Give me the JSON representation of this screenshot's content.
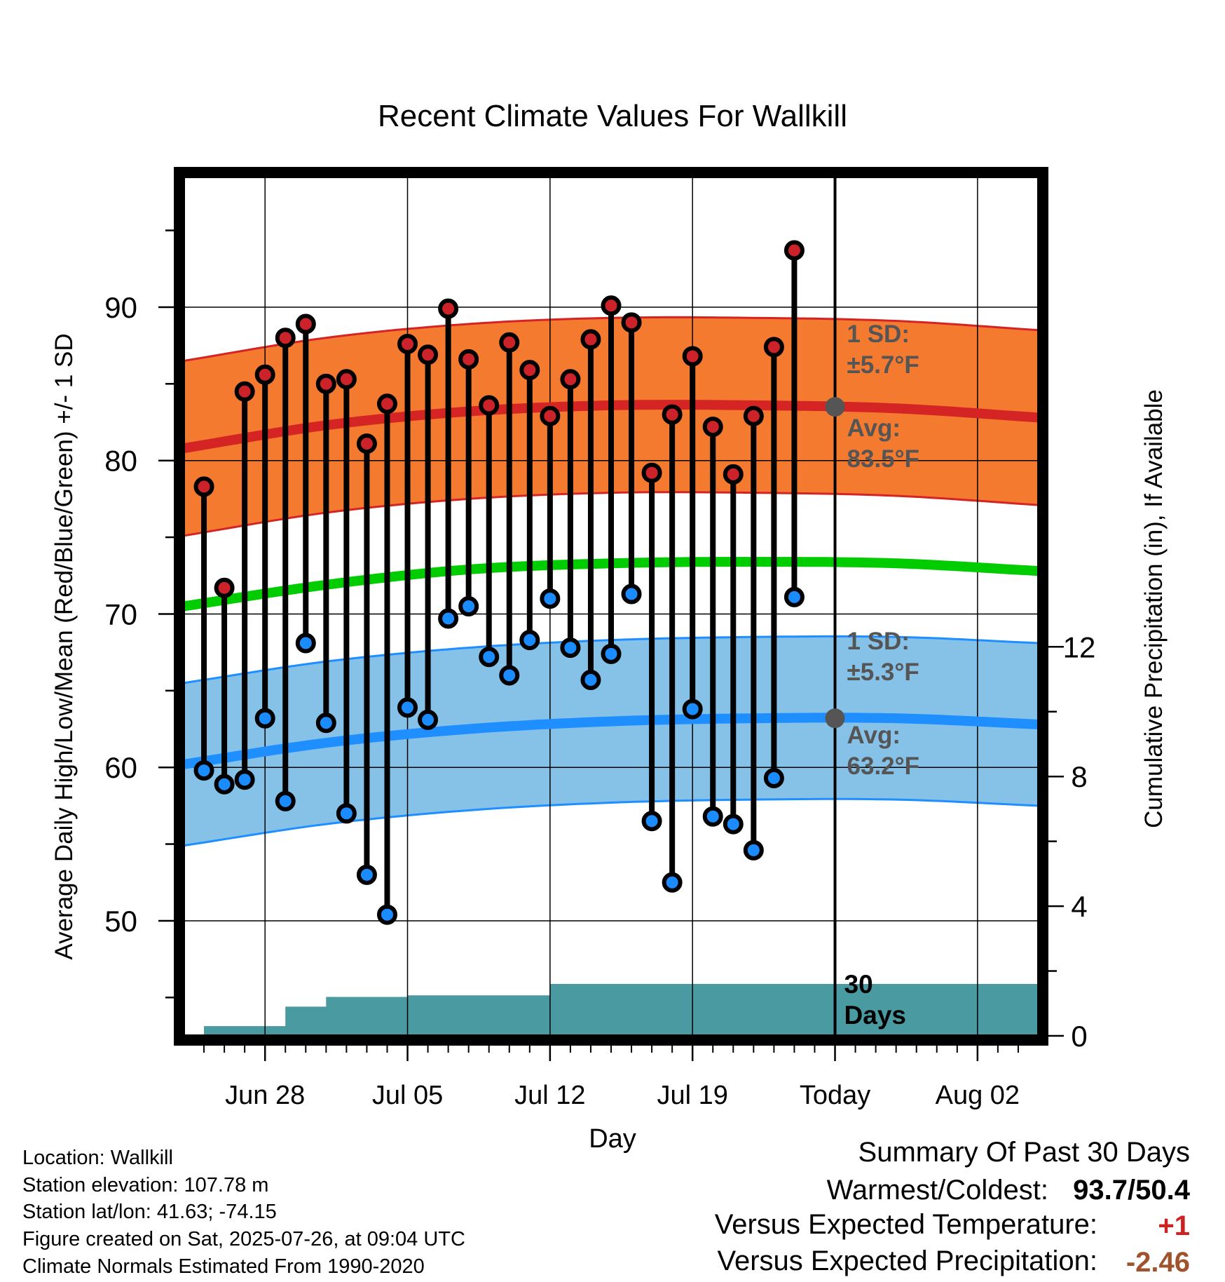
{
  "chart_data": {
    "type": "line",
    "title": "Recent Climate Values For Wallkill",
    "xlabel": "Day",
    "ylabel": "Average Daily High/Low/Mean (Red/Blue/Green) +/- 1 SD",
    "y2label": "Cumulative Precipitation (in), If Available",
    "x_start": "2025-06-25",
    "xlim": [
      "2025-06-24",
      "2025-08-05"
    ],
    "today": "2025-07-26",
    "ylim": [
      42.5,
      98.5
    ],
    "y_ticks": [
      50,
      60,
      70,
      80,
      90
    ],
    "y2lim": [
      0,
      26.5
    ],
    "y2_ticks": [
      0,
      4,
      8,
      12
    ],
    "x_ticks": [
      {
        "date": "2025-06-28",
        "label": "Jun 28"
      },
      {
        "date": "2025-07-05",
        "label": "Jul 05"
      },
      {
        "date": "2025-07-12",
        "label": "Jul 12"
      },
      {
        "date": "2025-07-19",
        "label": "Jul 19"
      },
      {
        "date": "2025-07-26",
        "label": "Today"
      },
      {
        "date": "2025-08-02",
        "label": "Aug 02"
      }
    ],
    "grid": true,
    "colors": {
      "high_dot": "#cc2229",
      "low_dot": "#1a8cff",
      "high_band": "#f47a30",
      "high_mean": "#d42424",
      "low_band": "#86c2e8",
      "low_mean": "#1f8fff",
      "mean": "#00cc00",
      "precip": "#4a9aa2",
      "annotation": "#555555"
    },
    "normals": {
      "dates": [
        "2025-06-24",
        "2025-07-01",
        "2025-07-08",
        "2025-07-15",
        "2025-07-22",
        "2025-07-29",
        "2025-08-05"
      ],
      "high_avg": [
        80.8,
        82.3,
        83.2,
        83.6,
        83.6,
        83.4,
        82.8
      ],
      "low_avg": [
        60.2,
        61.6,
        62.5,
        63.0,
        63.2,
        63.2,
        62.8
      ],
      "mean_avg": [
        70.5,
        71.9,
        72.9,
        73.3,
        73.4,
        73.3,
        72.8
      ],
      "high_sd": 5.7,
      "low_sd": 5.3
    },
    "series": [
      {
        "name": "High",
        "values": [
          78.3,
          71.7,
          84.5,
          85.6,
          88.0,
          88.9,
          85.0,
          85.3,
          81.1,
          83.7,
          87.6,
          86.9,
          89.9,
          86.6,
          83.6,
          87.7,
          85.9,
          82.9,
          85.3,
          87.9,
          90.1,
          89.0,
          79.2,
          83.0,
          86.8,
          82.2,
          79.1,
          82.9,
          87.4,
          93.7
        ]
      },
      {
        "name": "Low",
        "values": [
          59.8,
          58.9,
          59.2,
          63.2,
          57.8,
          68.1,
          62.9,
          57.0,
          53.0,
          50.4,
          63.9,
          63.1,
          69.7,
          70.5,
          67.2,
          66.0,
          68.3,
          71.0,
          67.8,
          65.7,
          67.4,
          71.3,
          56.5,
          52.5,
          63.8,
          56.8,
          56.3,
          54.6,
          59.3,
          71.1
        ]
      },
      {
        "name": "Cumulative Precipitation",
        "values": [
          0.1,
          0.3,
          0.3,
          0.3,
          0.3,
          0.9,
          0.9,
          1.2,
          1.2,
          1.2,
          1.2,
          1.25,
          1.25,
          1.25,
          1.25,
          1.25,
          1.25,
          1.25,
          1.6,
          1.6,
          1.6,
          1.6,
          1.6,
          1.6,
          1.6,
          1.6,
          1.6,
          1.6,
          1.6,
          1.6,
          1.6,
          1.6
        ]
      }
    ],
    "annotations": {
      "high_sd_label": "1 SD:",
      "high_sd_value": "±5.7°F",
      "high_avg_label": "Avg:",
      "high_avg_value": "83.5°F",
      "low_sd_label": "1 SD:",
      "low_sd_value": "±5.3°F",
      "low_avg_label": "Avg:",
      "low_avg_value": "63.2°F",
      "days_number": "30",
      "days_label": "Days"
    }
  },
  "summary": {
    "heading": "Summary Of Past 30 Days",
    "warm_cold_label": "Warmest/Coldest:",
    "warm_cold_value": "93.7/50.4",
    "temp_label": "Versus Expected Temperature:",
    "temp_value": "+1",
    "temp_color": "#cc2222",
    "precip_label": "Versus Expected Precipitation:",
    "precip_value": "-2.46",
    "precip_color": "#a0522d"
  },
  "info": {
    "location": "Location: Wallkill",
    "elevation": "Station elevation: 107.78 m",
    "latlon": "Station lat/lon: 41.63; -74.15",
    "created": "Figure created on Sat, 2025-07-26, at 09:04 UTC",
    "normals": "Climate Normals Estimated From 1990-2020"
  }
}
